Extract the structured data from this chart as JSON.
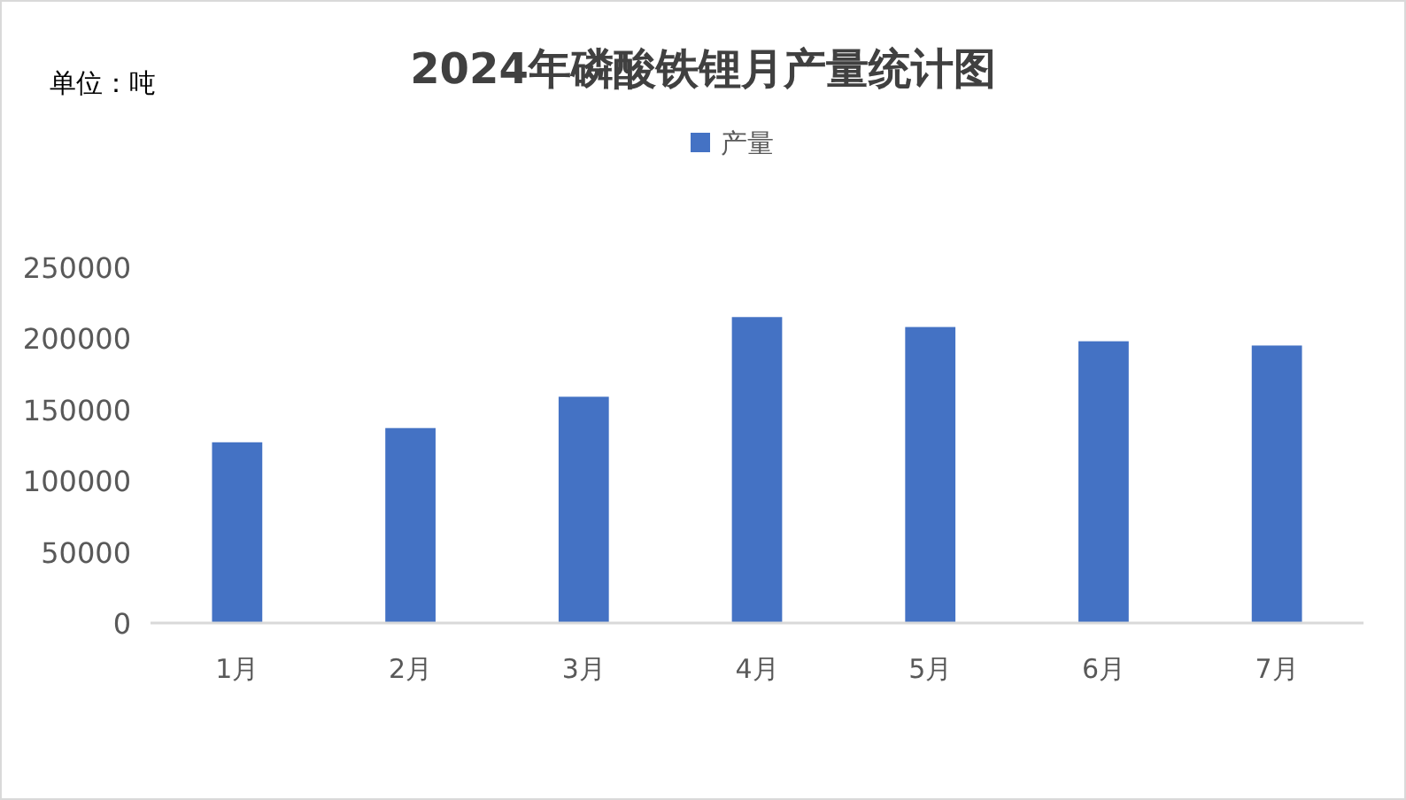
{
  "chart_data": {
    "type": "bar",
    "title": "2024年磷酸铁锂月产量统计图",
    "annotations": [
      "单位：吨"
    ],
    "categories": [
      "1月",
      "2月",
      "3月",
      "4月",
      "5月",
      "6月",
      "7月"
    ],
    "series": [
      {
        "name": "产量",
        "color": "#4472c4",
        "values": [
          127000,
          137000,
          159000,
          215000,
          208000,
          198000,
          195000
        ]
      }
    ],
    "ylim": [
      0,
      250000
    ],
    "yticks": [
      0,
      50000,
      100000,
      150000,
      200000,
      250000
    ],
    "grid": false,
    "legend": "top"
  }
}
